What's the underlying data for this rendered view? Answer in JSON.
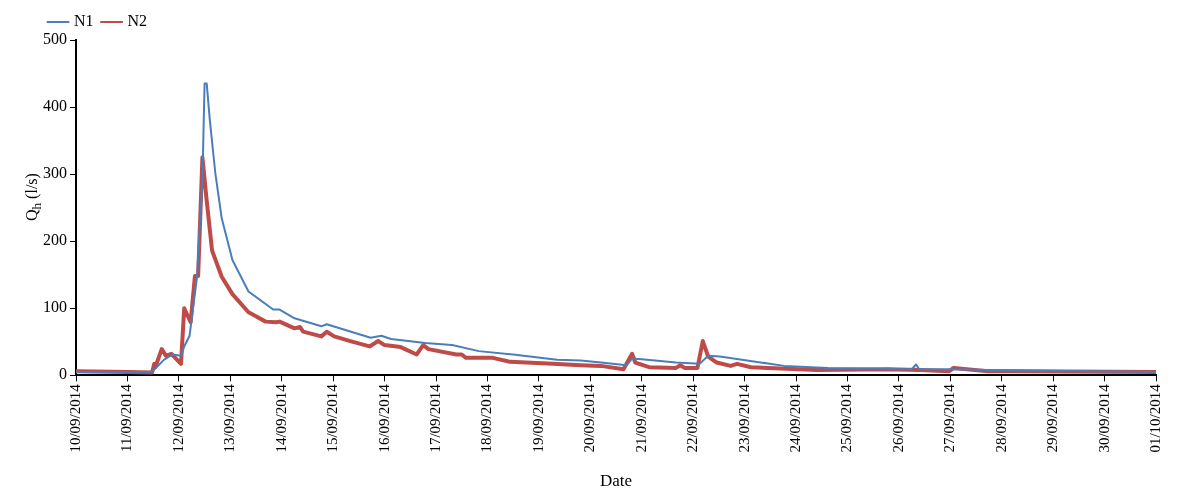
{
  "chart_data": {
    "type": "line",
    "xlabel": "Date",
    "ylabel": "Q$_{h}$ (l/s)",
    "xlim": [
      "2014-09-10",
      "2014-10-01"
    ],
    "xticks": [
      {
        "value": "2014-09-10",
        "label": "10/09/2014"
      },
      {
        "value": "2014-09-11",
        "label": "11/09/2014"
      },
      {
        "value": "2014-09-12",
        "label": "12/09/2014"
      },
      {
        "value": "2014-09-13",
        "label": "13/09/2014"
      },
      {
        "value": "2014-09-14",
        "label": "14/09/2014"
      },
      {
        "value": "2014-09-15",
        "label": "15/09/2014"
      },
      {
        "value": "2014-09-16",
        "label": "16/09/2014"
      },
      {
        "value": "2014-09-17",
        "label": "17/09/2014"
      },
      {
        "value": "2014-09-18",
        "label": "18/09/2014"
      },
      {
        "value": "2014-09-19",
        "label": "19/09/2014"
      },
      {
        "value": "2014-09-20",
        "label": "20/09/2014"
      },
      {
        "value": "2014-09-21",
        "label": "21/09/2014"
      },
      {
        "value": "2014-09-22",
        "label": "22/09/2014"
      },
      {
        "value": "2014-09-23",
        "label": "23/09/2014"
      },
      {
        "value": "2014-09-24",
        "label": "24/09/2014"
      },
      {
        "value": "2014-09-25",
        "label": "25/09/2014"
      },
      {
        "value": "2014-09-26",
        "label": "26/09/2014"
      },
      {
        "value": "2014-09-27",
        "label": "27/09/2014"
      },
      {
        "value": "2014-09-28",
        "label": "28/09/2014"
      },
      {
        "value": "2014-09-29",
        "label": "29/09/2014"
      },
      {
        "value": "2014-09-30",
        "label": "30/09/2014"
      },
      {
        "value": "2014-10-01",
        "label": "01/10/2014"
      }
    ],
    "ylim": [
      0,
      500
    ],
    "yticks": [
      0,
      100,
      200,
      300,
      400,
      500
    ],
    "grid": false,
    "legend": "top",
    "marker": "none",
    "line_style": "solid",
    "series": [
      {
        "name": "N1",
        "color": "#4a7ebb",
        "x": [
          "2014-09-10T00:00",
          "2014-09-11T00:00",
          "2014-09-11T11:30",
          "2014-09-11T17:00",
          "2014-09-11T21:00",
          "2014-09-12T01:00",
          "2014-09-12T02:30",
          "2014-09-12T05:00",
          "2014-09-12T08:30",
          "2014-09-12T11:00",
          "2014-09-12T12:00",
          "2014-09-12T13:00",
          "2014-09-12T14:30",
          "2014-09-12T17:00",
          "2014-09-12T20:00",
          "2014-09-13T01:00",
          "2014-09-13T08:30",
          "2014-09-13T20:00",
          "2014-09-13T23:00",
          "2014-09-14T06:00",
          "2014-09-14T18:30",
          "2014-09-14T21:00",
          "2014-09-15T17:30",
          "2014-09-15T22:30",
          "2014-09-16T03:00",
          "2014-09-16T19:00",
          "2014-09-17T07:30",
          "2014-09-17T20:00",
          "2014-09-18T12:00",
          "2014-09-19T08:30",
          "2014-09-19T19:30",
          "2014-09-20T05:00",
          "2014-09-20T17:00",
          "2014-09-20T19:30",
          "2014-09-21T00:00",
          "2014-09-21T16:00",
          "2014-09-22T03:00",
          "2014-09-22T07:00",
          "2014-09-22T12:30",
          "2014-09-23T18:30",
          "2014-09-24T15:00",
          "2014-09-26T06:00",
          "2014-09-26T08:00",
          "2014-09-26T09:30",
          "2014-09-27T01:30",
          "2014-09-27T17:30",
          "2014-09-28T09:00",
          "2014-10-01T00:00"
        ],
        "values": [
          5,
          5,
          5,
          23,
          31,
          29,
          43,
          59,
          147,
          291,
          435,
          435,
          379,
          302,
          234,
          172,
          125,
          98,
          98,
          85,
          73,
          76,
          56,
          59,
          54,
          48,
          45,
          36,
          31,
          23,
          22,
          19,
          15,
          25,
          24,
          19,
          17,
          29,
          28,
          14,
          11,
          9,
          16,
          9,
          9,
          8,
          7,
          5
        ]
      },
      {
        "name": "N2",
        "color": "#be4b48",
        "x": [
          "2014-09-10T00:00",
          "2014-09-11T00:00",
          "2014-09-11T11:30",
          "2014-09-11T12:30",
          "2014-09-11T13:00",
          "2014-09-11T16:00",
          "2014-09-11T18:00",
          "2014-09-11T20:30",
          "2014-09-12T01:00",
          "2014-09-12T02:30",
          "2014-09-12T05:30",
          "2014-09-12T07:30",
          "2014-09-12T09:00",
          "2014-09-12T11:00",
          "2014-09-12T13:00",
          "2014-09-12T15:30",
          "2014-09-12T20:00",
          "2014-09-13T01:00",
          "2014-09-13T08:30",
          "2014-09-13T16:30",
          "2014-09-13T21:30",
          "2014-09-13T23:00",
          "2014-09-14T06:00",
          "2014-09-14T08:30",
          "2014-09-14T10:00",
          "2014-09-14T18:30",
          "2014-09-14T21:00",
          "2014-09-15T00:30",
          "2014-09-15T08:00",
          "2014-09-15T17:00",
          "2014-09-15T21:00",
          "2014-09-16T00:00",
          "2014-09-16T07:30",
          "2014-09-16T15:00",
          "2014-09-16T18:00",
          "2014-09-16T20:30",
          "2014-09-17T09:30",
          "2014-09-17T12:00",
          "2014-09-17T14:00",
          "2014-09-18T02:30",
          "2014-09-18T10:30",
          "2014-09-19T06:30",
          "2014-09-19T19:30",
          "2014-09-20T05:00",
          "2014-09-20T15:30",
          "2014-09-20T19:30",
          "2014-09-20T21:00",
          "2014-09-21T03:30",
          "2014-09-21T16:00",
          "2014-09-21T18:00",
          "2014-09-21T20:00",
          "2014-09-22T02:00",
          "2014-09-22T04:30",
          "2014-09-22T07:00",
          "2014-09-22T11:00",
          "2014-09-22T17:30",
          "2014-09-22T20:30",
          "2014-09-23T03:00",
          "2014-09-24T10:00",
          "2014-09-25T19:00",
          "2014-09-26T09:30",
          "2014-09-26T23:30",
          "2014-09-27T01:30",
          "2014-09-27T17:30",
          "2014-10-01T00:00"
        ],
        "values": [
          6,
          5,
          4,
          17,
          12,
          39,
          29,
          32,
          17,
          100,
          79,
          148,
          148,
          325,
          260,
          186,
          147,
          121,
          94,
          80,
          79,
          80,
          70,
          72,
          65,
          58,
          65,
          58,
          51,
          43,
          51,
          45,
          42,
          31,
          45,
          39,
          31,
          31,
          26,
          26,
          20,
          17,
          15,
          14,
          9,
          32,
          19,
          12,
          11,
          15,
          11,
          11,
          51,
          28,
          19,
          14,
          17,
          12,
          8,
          9,
          8,
          6,
          11,
          6,
          5
        ]
      }
    ]
  }
}
